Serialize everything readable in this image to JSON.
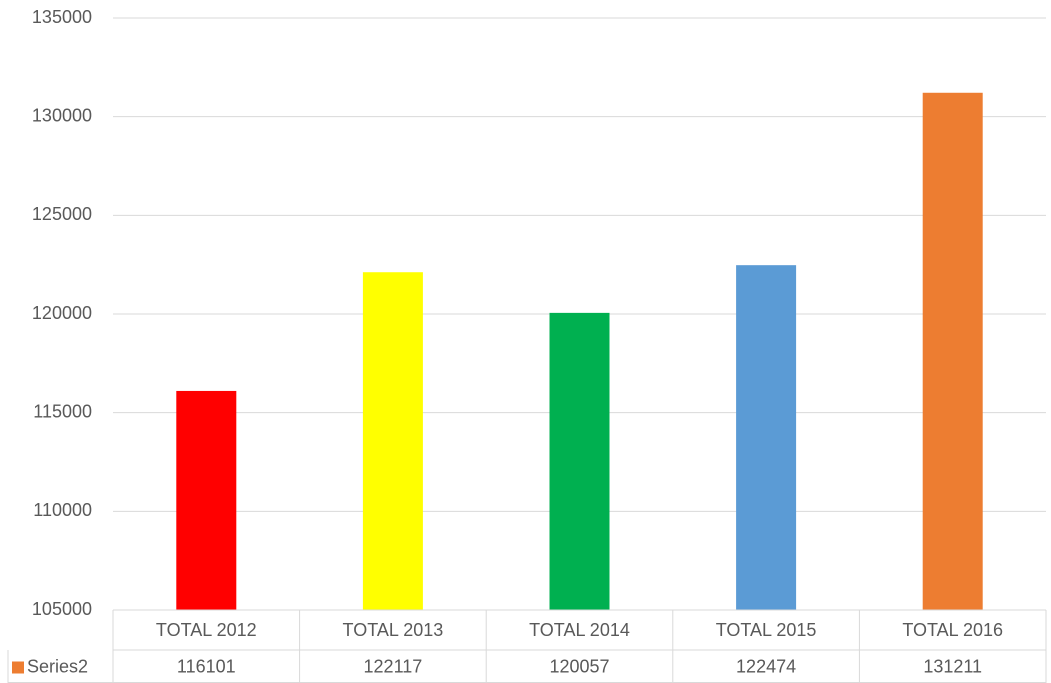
{
  "chart_data": {
    "type": "bar",
    "categories": [
      "TOTAL 2012",
      "TOTAL 2013",
      "TOTAL 2014",
      "TOTAL 2015",
      "TOTAL 2016"
    ],
    "series": [
      {
        "name": "Series2",
        "color": "#ed7d31",
        "colors": [
          "#ff0000",
          "#ffff00",
          "#00b050",
          "#5b9bd5",
          "#ed7d31"
        ],
        "values": [
          116101,
          122117,
          120057,
          122474,
          131211
        ]
      }
    ],
    "ylim": [
      105000,
      135000
    ],
    "yticks": [
      105000,
      110000,
      115000,
      120000,
      125000,
      130000,
      135000
    ],
    "grid": true,
    "data_table": true
  }
}
